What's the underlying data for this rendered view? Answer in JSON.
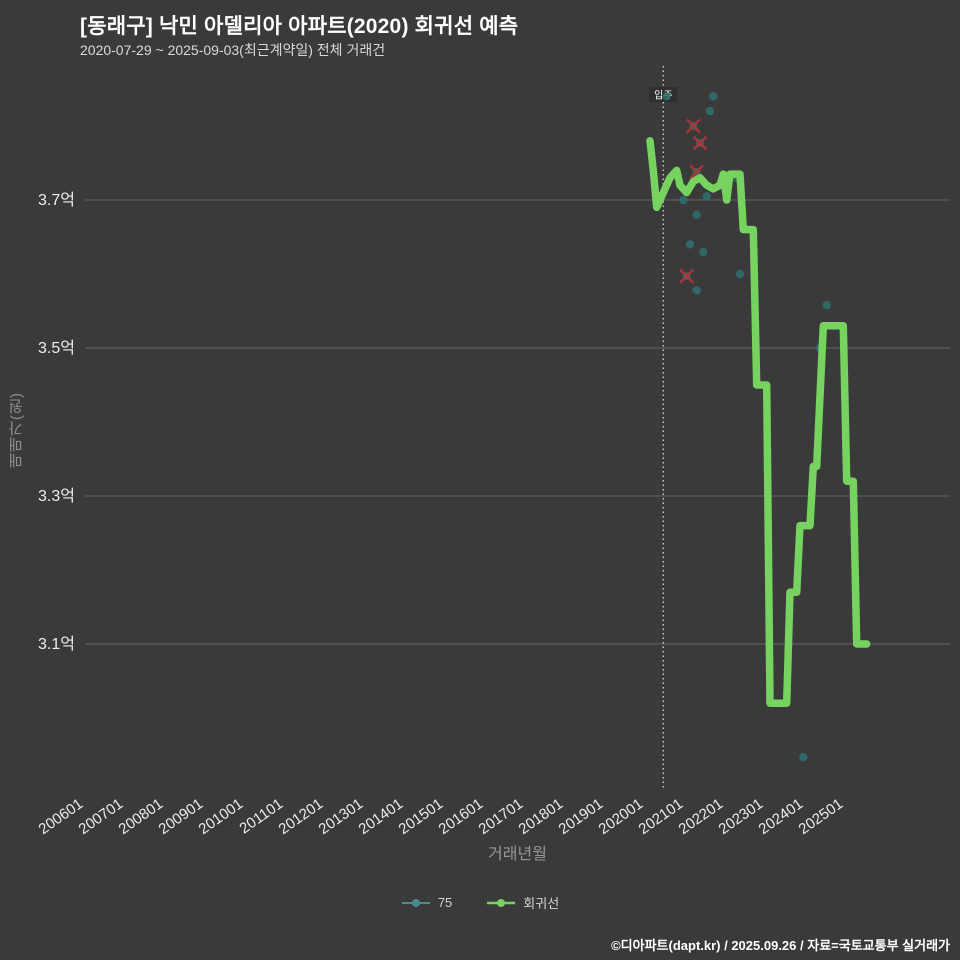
{
  "header": {
    "title": "[동래구] 낙민 아델리아 아파트(2020) 회귀선 예측",
    "subtitle": "2020-07-29 ~ 2025-09-03(최근계약일) 전체 거래건"
  },
  "legend": {
    "items": [
      {
        "label": "75",
        "marker": "line-dot"
      },
      {
        "label": "회귀선",
        "marker": "line-dot"
      }
    ]
  },
  "footer": {
    "attribution": "©디아파트(dapt.kr) / 2025.09.26 / 자료=국토교통부 실거래가"
  },
  "colors": {
    "background": "#3a3a3a",
    "grid": "#5c5c5c",
    "tick_text": "#ededed",
    "axis_title": "#969696",
    "scatter": "#2f7070",
    "scatter_legend": "#4e8b8b",
    "canceled_x": "#b03636",
    "regression": "#77d35f",
    "guide_line": "#e0e0e0",
    "annotation_bg": "#2f2f2f",
    "annotation_text": "#ffffff"
  },
  "chart_data": {
    "type": "scatter",
    "title": "[동래구] 낙민 아델리아 아파트(2020) 회귀선 예측",
    "subtitle": "2020-07-29 ~ 2025-09-03(최근계약일) 전체 거래건",
    "xlabel": "거래년월",
    "ylabel": "매매가(원)",
    "x_unit": "YYYYMM",
    "y_unit": "억원",
    "grid": "horizontal-only",
    "legend_position": "bottom-center",
    "x_tick_labels": [
      "200601",
      "200701",
      "200801",
      "200901",
      "201001",
      "201101",
      "201201",
      "201301",
      "201401",
      "201501",
      "201601",
      "201701",
      "201801",
      "201901",
      "202001",
      "202101",
      "202201",
      "202301",
      "202401",
      "202501"
    ],
    "y_ticks": [
      {
        "label": "3.7억",
        "value": 3.7
      },
      {
        "label": "3.5억",
        "value": 3.5
      },
      {
        "label": "3.3억",
        "value": 3.3
      },
      {
        "label": "3.1억",
        "value": 3.1
      }
    ],
    "ylim": [
      2.9,
      3.88
    ],
    "vline": {
      "x": 202008,
      "label": "입주"
    },
    "series": [
      {
        "name": "75",
        "type": "scatter",
        "points": [
          {
            "x": 202009,
            "y": 3.84
          },
          {
            "x": 202111,
            "y": 3.84
          },
          {
            "x": 202110,
            "y": 3.82
          },
          {
            "x": 202102,
            "y": 3.7
          },
          {
            "x": 202106,
            "y": 3.68
          },
          {
            "x": 202109,
            "y": 3.705
          },
          {
            "x": 202202,
            "y": 3.72
          },
          {
            "x": 202206,
            "y": 3.73
          },
          {
            "x": 202208,
            "y": 3.665
          },
          {
            "x": 202104,
            "y": 3.64
          },
          {
            "x": 202108,
            "y": 3.63
          },
          {
            "x": 202207,
            "y": 3.6
          },
          {
            "x": 202106,
            "y": 3.578
          },
          {
            "x": 202409,
            "y": 3.558
          },
          {
            "x": 202407,
            "y": 3.5
          },
          {
            "x": 202402,
            "y": 2.947
          }
        ]
      },
      {
        "name": "75-x-marked",
        "type": "scatter-x",
        "points": [
          {
            "x": 202105,
            "y": 3.8
          },
          {
            "x": 202107,
            "y": 3.777
          },
          {
            "x": 202106,
            "y": 3.738
          },
          {
            "x": 202103,
            "y": 3.597
          }
        ]
      },
      {
        "name": "회귀선",
        "type": "line",
        "points": [
          {
            "x": 202004,
            "y": 3.78
          },
          {
            "x": 202005,
            "y": 3.74
          },
          {
            "x": 202006,
            "y": 3.69
          },
          {
            "x": 202008,
            "y": 3.71
          },
          {
            "x": 202010,
            "y": 3.73
          },
          {
            "x": 202012,
            "y": 3.74
          },
          {
            "x": 202101,
            "y": 3.72
          },
          {
            "x": 202103,
            "y": 3.71
          },
          {
            "x": 202105,
            "y": 3.725
          },
          {
            "x": 202107,
            "y": 3.73
          },
          {
            "x": 202109,
            "y": 3.72
          },
          {
            "x": 202111,
            "y": 3.715
          },
          {
            "x": 202201,
            "y": 3.72
          },
          {
            "x": 202202,
            "y": 3.735
          },
          {
            "x": 202203,
            "y": 3.7
          },
          {
            "x": 202204,
            "y": 3.735
          },
          {
            "x": 202207,
            "y": 3.735
          },
          {
            "x": 202208,
            "y": 3.66
          },
          {
            "x": 202211,
            "y": 3.66
          },
          {
            "x": 202212,
            "y": 3.45
          },
          {
            "x": 202303,
            "y": 3.45
          },
          {
            "x": 202304,
            "y": 3.02
          },
          {
            "x": 202309,
            "y": 3.02
          },
          {
            "x": 202310,
            "y": 3.17
          },
          {
            "x": 202312,
            "y": 3.17
          },
          {
            "x": 202401,
            "y": 3.26
          },
          {
            "x": 202404,
            "y": 3.26
          },
          {
            "x": 202405,
            "y": 3.34
          },
          {
            "x": 202406,
            "y": 3.34
          },
          {
            "x": 202408,
            "y": 3.53
          },
          {
            "x": 202502,
            "y": 3.53
          },
          {
            "x": 202503,
            "y": 3.32
          },
          {
            "x": 202505,
            "y": 3.32
          },
          {
            "x": 202506,
            "y": 3.1
          },
          {
            "x": 202509,
            "y": 3.1
          }
        ]
      }
    ]
  }
}
